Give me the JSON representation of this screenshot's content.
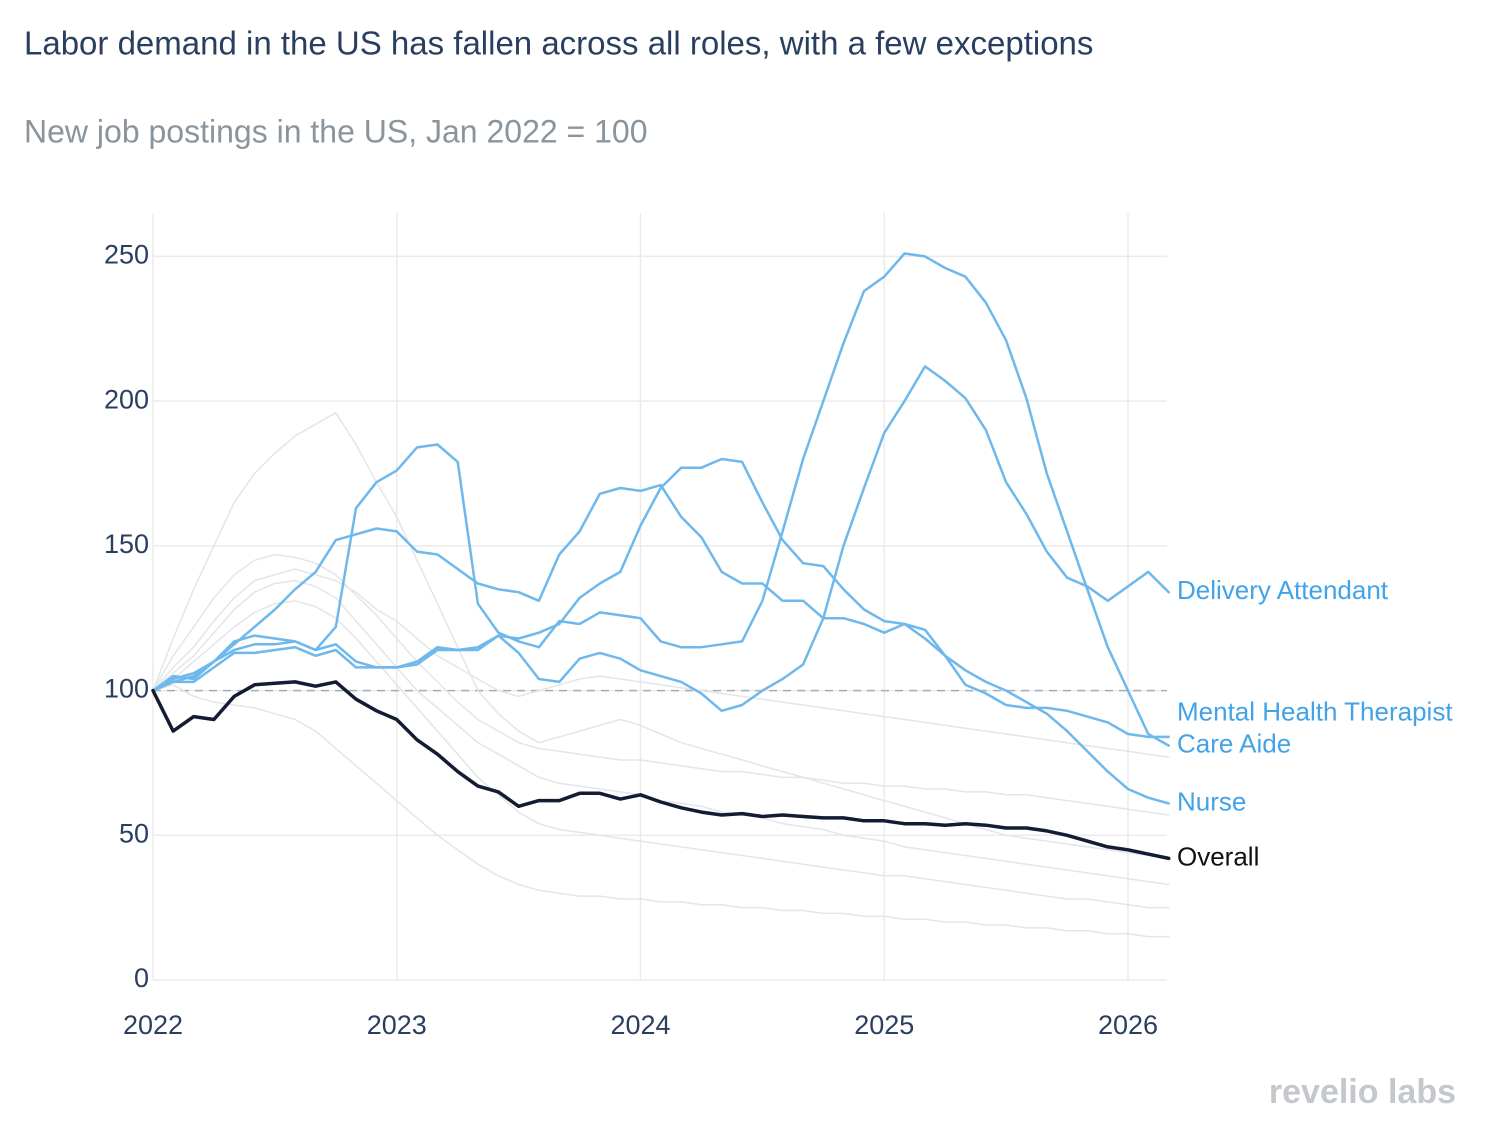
{
  "chart_data": {
    "type": "line",
    "title": "Labor demand in the US has fallen across all roles, with a few exceptions",
    "subtitle": "New job postings in the US, Jan 2022 = 100",
    "source_logo": "revelio labs",
    "x": [
      2022,
      2022.083,
      2022.167,
      2022.25,
      2022.333,
      2022.417,
      2022.5,
      2022.583,
      2022.667,
      2022.75,
      2022.833,
      2022.917,
      2023,
      2023.083,
      2023.167,
      2023.25,
      2023.333,
      2023.417,
      2023.5,
      2023.583,
      2023.667,
      2023.75,
      2023.833,
      2023.917,
      2024,
      2024.083,
      2024.167,
      2024.25,
      2024.333,
      2024.417,
      2024.5,
      2024.583,
      2024.667,
      2024.75,
      2024.833,
      2024.917,
      2025,
      2025.083,
      2025.167,
      2025.25,
      2025.333,
      2025.417,
      2025.5,
      2025.583,
      2025.667,
      2025.75,
      2025.833,
      2025.917,
      2026,
      2026.083,
      2026.167
    ],
    "xlim": [
      2022,
      2026.16
    ],
    "xticks": [
      2022,
      2023,
      2024,
      2025,
      2026
    ],
    "ylim": [
      0,
      265
    ],
    "yticks": [
      0,
      50,
      100,
      150,
      200,
      250
    ],
    "grid": true,
    "reference_line": 100,
    "series": [
      {
        "color": "#e3e5ea",
        "values": [
          100,
          112,
          122,
          132,
          140,
          145,
          147,
          146,
          144,
          140,
          133,
          126,
          118,
          110,
          103,
          96,
          90,
          86,
          82,
          80,
          79,
          78,
          77,
          76,
          76,
          75,
          74,
          73,
          72,
          72,
          71,
          70,
          70,
          69,
          68,
          68,
          67,
          67,
          66,
          66,
          65,
          65,
          64,
          64,
          63,
          62,
          61,
          60,
          59,
          58,
          57
        ]
      },
      {
        "color": "#e3e5ea",
        "values": [
          100,
          102,
          98,
          96,
          95,
          94,
          92,
          90,
          86,
          80,
          74,
          68,
          62,
          56,
          50,
          45,
          40,
          36,
          33,
          31,
          30,
          29,
          29,
          28,
          28,
          27,
          27,
          26,
          26,
          25,
          25,
          24,
          24,
          23,
          23,
          22,
          22,
          21,
          21,
          20,
          20,
          19,
          19,
          18,
          18,
          17,
          17,
          16,
          16,
          15,
          15
        ]
      },
      {
        "color": "#e3e5ea",
        "values": [
          100,
          118,
          135,
          150,
          165,
          175,
          182,
          188,
          192,
          196,
          185,
          172,
          160,
          145,
          130,
          115,
          100,
          92,
          86,
          82,
          84,
          86,
          88,
          90,
          88,
          85,
          82,
          80,
          78,
          76,
          74,
          72,
          70,
          68,
          66,
          64,
          62,
          60,
          58,
          56,
          54,
          52,
          50,
          49,
          48,
          47,
          46,
          45,
          44,
          43,
          42
        ]
      },
      {
        "color": "#e3e5ea",
        "values": [
          100,
          108,
          115,
          124,
          132,
          138,
          140,
          142,
          140,
          138,
          134,
          128,
          124,
          118,
          112,
          108,
          104,
          100,
          98,
          100,
          102,
          104,
          105,
          104,
          103,
          102,
          101,
          100,
          99,
          98,
          97,
          96,
          95,
          94,
          93,
          92,
          91,
          90,
          89,
          88,
          87,
          86,
          85,
          84,
          83,
          82,
          81,
          80,
          79,
          78,
          77
        ]
      },
      {
        "color": "#e3e5ea",
        "values": [
          100,
          106,
          112,
          120,
          128,
          134,
          137,
          138,
          136,
          132,
          124,
          116,
          108,
          100,
          94,
          88,
          82,
          78,
          74,
          70,
          68,
          67,
          66,
          65,
          64,
          62,
          61,
          60,
          58,
          57,
          56,
          54,
          53,
          52,
          50,
          49,
          48,
          46,
          45,
          44,
          43,
          42,
          41,
          40,
          39,
          38,
          37,
          36,
          35,
          34,
          33
        ]
      },
      {
        "color": "#e3e5ea",
        "values": [
          100,
          104,
          110,
          116,
          122,
          127,
          130,
          131,
          129,
          125,
          118,
          110,
          102,
          94,
          86,
          78,
          70,
          64,
          58,
          54,
          52,
          51,
          50,
          49,
          48,
          47,
          46,
          45,
          44,
          43,
          42,
          41,
          40,
          39,
          38,
          37,
          36,
          36,
          35,
          34,
          33,
          32,
          31,
          30,
          29,
          28,
          28,
          27,
          26,
          25,
          25
        ]
      },
      {
        "name": "Delivery Attendant",
        "color": "#6fb8ec",
        "values": [
          100,
          103,
          103,
          108,
          113,
          113,
          114,
          115,
          112,
          114,
          108,
          108,
          108,
          110,
          115,
          114,
          114,
          119,
          113,
          104,
          103,
          111,
          113,
          111,
          107,
          105,
          103,
          99,
          93,
          95,
          100,
          104,
          109,
          125,
          150,
          170,
          189,
          200,
          212,
          207,
          201,
          190,
          172,
          161,
          148,
          139,
          136,
          131,
          136,
          141,
          134
        ]
      },
      {
        "name": "Mental Health Therapist",
        "color": "#6fb8ec",
        "values": [
          100,
          103,
          105,
          110,
          116,
          122,
          128,
          135,
          141,
          152,
          154,
          156,
          155,
          148,
          147,
          142,
          137,
          135,
          134,
          131,
          147,
          155,
          168,
          170,
          169,
          171,
          160,
          153,
          141,
          137,
          137,
          131,
          131,
          125,
          125,
          123,
          120,
          123,
          121,
          112,
          102,
          99,
          95,
          94,
          94,
          93,
          91,
          89,
          85,
          84,
          84
        ]
      },
      {
        "name": "Care Aide",
        "color": "#6fb8ec",
        "values": [
          100,
          105,
          104,
          110,
          117,
          119,
          118,
          117,
          114,
          122,
          163,
          172,
          176,
          184,
          185,
          179,
          130,
          120,
          117,
          115,
          124,
          123,
          127,
          126,
          125,
          117,
          115,
          115,
          116,
          117,
          131,
          155,
          180,
          200,
          220,
          238,
          243,
          251,
          250,
          246,
          243,
          234,
          221,
          201,
          175,
          155,
          135,
          115,
          100,
          85,
          81
        ]
      },
      {
        "name": "Nurse",
        "color": "#6fb8ec",
        "values": [
          100,
          104,
          106,
          110,
          114,
          116,
          116,
          117,
          114,
          116,
          110,
          108,
          108,
          109,
          114,
          114,
          115,
          119,
          118,
          120,
          123,
          132,
          137,
          141,
          157,
          170,
          177,
          177,
          180,
          179,
          165,
          152,
          144,
          143,
          135,
          128,
          124,
          123,
          118,
          112,
          107,
          103,
          100,
          96,
          92,
          86,
          79,
          72,
          66,
          63,
          61
        ]
      },
      {
        "name": "Overall",
        "color": "#141c33",
        "values": [
          100,
          86,
          91,
          90,
          98,
          102,
          102.5,
          103,
          101.5,
          103,
          97,
          93,
          90,
          83,
          78,
          72,
          67,
          65,
          60,
          62,
          62,
          64.5,
          64.5,
          62.5,
          64,
          61.5,
          59.5,
          58,
          57,
          57.5,
          56.5,
          57,
          56.5,
          56,
          56,
          55,
          55,
          54,
          54,
          53.5,
          54,
          53.5,
          52.5,
          52.5,
          51.5,
          50,
          48,
          46,
          45,
          43.5,
          42
        ]
      }
    ]
  }
}
